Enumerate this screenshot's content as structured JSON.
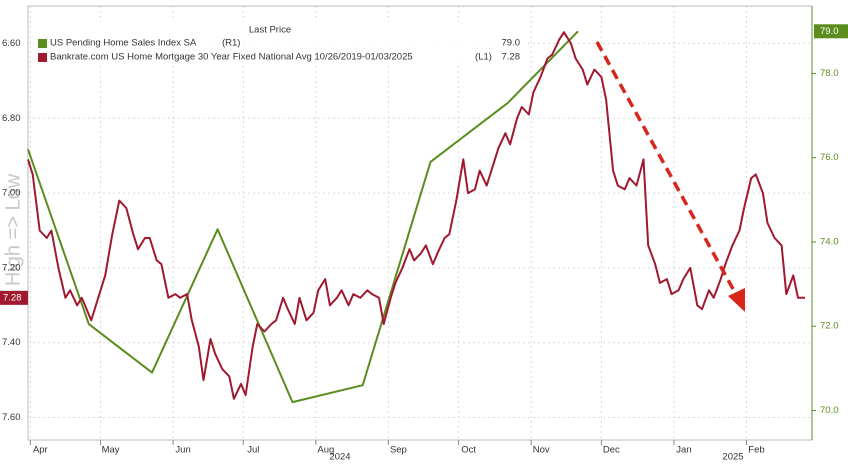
{
  "chart_data": {
    "type": "line",
    "legend_title": "Last Price",
    "ylabel": "High => Low",
    "years": [
      "2024",
      "2025"
    ],
    "xlim": [
      -1,
      334
    ],
    "xticks": [
      {
        "value": 0,
        "label": "Apr"
      },
      {
        "value": 30,
        "label": "May"
      },
      {
        "value": 61,
        "label": "Jun"
      },
      {
        "value": 91,
        "label": "Jul"
      },
      {
        "value": 122,
        "label": "Aug"
      },
      {
        "value": 153,
        "label": "Sep"
      },
      {
        "value": 183,
        "label": "Oct"
      },
      {
        "value": 214,
        "label": "Nov"
      },
      {
        "value": 244,
        "label": "Dec"
      },
      {
        "value": 275,
        "label": "Jan"
      },
      {
        "value": 306,
        "label": "Feb"
      }
    ],
    "ylim": [
      7.66,
      6.5
    ],
    "yticks": [
      {
        "value": 6.6,
        "label": "6.60"
      },
      {
        "value": 6.8,
        "label": "6.80"
      },
      {
        "value": 7.0,
        "label": "7.00"
      },
      {
        "value": 7.2,
        "label": "7.20"
      },
      {
        "value": 7.4,
        "label": "7.40"
      },
      {
        "value": 7.6,
        "label": "7.60"
      }
    ],
    "y2lim": [
      69.3,
      79.6
    ],
    "y2ticks": [
      {
        "value": 70,
        "label": "70.0"
      },
      {
        "value": 72,
        "label": "72.0"
      },
      {
        "value": 74,
        "label": "74.0"
      },
      {
        "value": 76,
        "label": "76.0"
      },
      {
        "value": 78,
        "label": "78.0"
      }
    ],
    "grid": true,
    "series": [
      {
        "name": "US Pending Home Sales Index SA",
        "axis_tag": "(R1)",
        "last_label": {
          "value": 79.0,
          "label": "79.0"
        },
        "color": "#5b8c1e",
        "axis": "y2",
        "x": [
          -1,
          25,
          52,
          80,
          112,
          142,
          171,
          204,
          234
        ],
        "values": [
          76.2,
          72.05,
          70.9,
          74.3,
          70.2,
          70.6,
          75.9,
          77.3,
          79.0
        ]
      },
      {
        "name": "Bankrate.com US Home Mortgage 30 Year Fixed National Avg 10/26/2019-01/03/2025",
        "axis_tag": "(L1)",
        "last_label": {
          "value": 7.28,
          "label": "7.28"
        },
        "color": "#a0192f",
        "axis": "y",
        "x": [
          -1,
          1,
          4,
          7,
          9,
          12,
          15,
          17,
          20,
          22,
          26,
          28,
          32,
          35,
          38,
          41,
          44,
          46,
          49,
          51,
          54,
          56,
          59,
          62,
          64,
          67,
          69,
          72,
          74,
          77,
          79,
          82,
          85,
          87,
          90,
          92,
          95,
          97,
          100,
          103,
          105,
          108,
          110,
          113,
          115,
          118,
          121,
          123,
          126,
          128,
          131,
          133,
          136,
          138,
          141,
          144,
          146,
          149,
          151,
          154,
          156,
          159,
          162,
          164,
          167,
          169,
          172,
          174,
          177,
          179,
          182,
          185,
          187,
          190,
          192,
          195,
          197,
          200,
          203,
          205,
          208,
          210,
          213,
          215,
          218,
          221,
          223,
          226,
          228,
          231,
          233,
          236,
          238,
          241,
          244,
          246,
          249,
          251,
          254,
          256,
          259,
          262,
          264,
          267,
          269,
          272,
          274,
          277,
          279,
          282,
          285,
          287,
          290,
          292,
          295,
          297,
          300,
          303,
          305,
          308,
          310,
          313,
          315,
          318,
          321,
          323,
          326,
          328,
          331
        ],
        "values": [
          6.91,
          6.95,
          7.1,
          7.12,
          7.1,
          7.2,
          7.28,
          7.26,
          7.3,
          7.28,
          7.34,
          7.3,
          7.22,
          7.11,
          7.02,
          7.04,
          7.11,
          7.15,
          7.12,
          7.12,
          7.18,
          7.19,
          7.28,
          7.27,
          7.28,
          7.27,
          7.34,
          7.41,
          7.5,
          7.39,
          7.43,
          7.47,
          7.49,
          7.55,
          7.51,
          7.54,
          7.41,
          7.35,
          7.37,
          7.35,
          7.34,
          7.28,
          7.31,
          7.35,
          7.28,
          7.34,
          7.32,
          7.26,
          7.23,
          7.3,
          7.28,
          7.26,
          7.3,
          7.27,
          7.28,
          7.26,
          7.27,
          7.28,
          7.35,
          7.28,
          7.24,
          7.2,
          7.15,
          7.18,
          7.16,
          7.14,
          7.19,
          7.16,
          7.12,
          7.11,
          7.02,
          6.91,
          7.0,
          6.99,
          6.94,
          6.98,
          6.94,
          6.88,
          6.84,
          6.87,
          6.8,
          6.77,
          6.79,
          6.73,
          6.69,
          6.64,
          6.63,
          6.59,
          6.57,
          6.6,
          6.64,
          6.67,
          6.71,
          6.67,
          6.69,
          6.75,
          6.94,
          6.98,
          6.99,
          6.96,
          6.98,
          6.91,
          7.14,
          7.19,
          7.24,
          7.23,
          7.27,
          7.26,
          7.23,
          7.2,
          7.3,
          7.31,
          7.26,
          7.28,
          7.23,
          7.19,
          7.14,
          7.1,
          7.04,
          6.96,
          6.95,
          7.0,
          7.08,
          7.12,
          7.14,
          7.27,
          7.22,
          7.28,
          7.28
        ]
      }
    ]
  }
}
